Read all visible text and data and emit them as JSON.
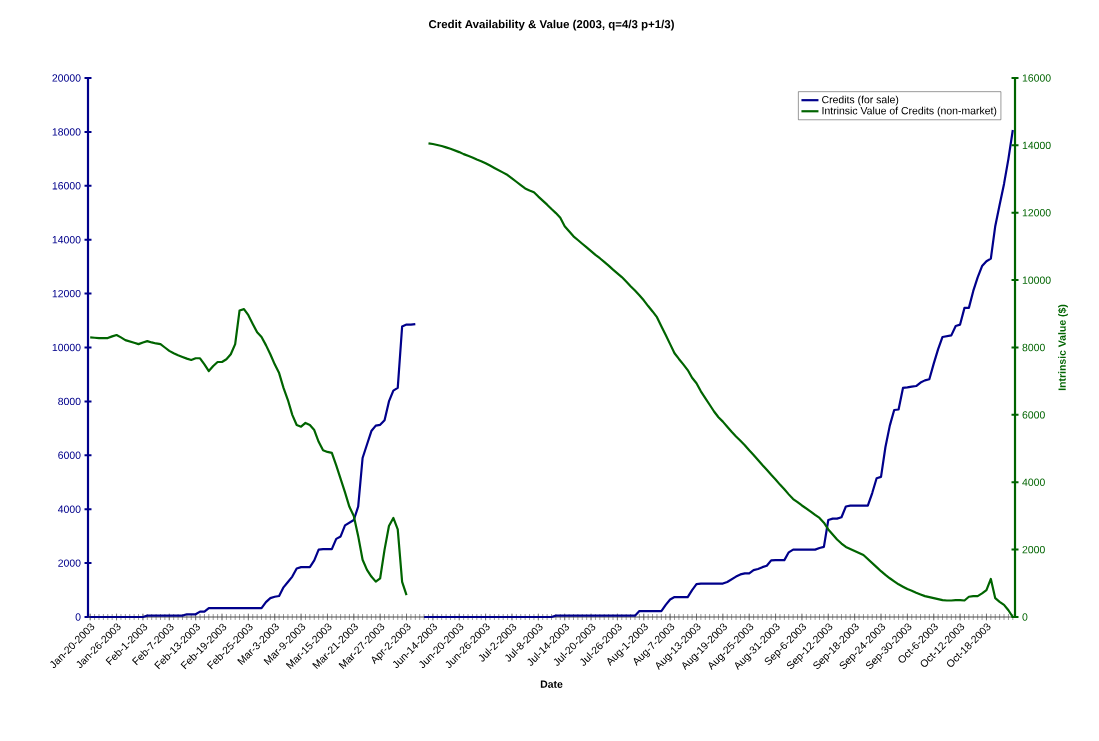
{
  "chart_data": {
    "type": "line",
    "title": "Credit Availability & Value (2003, q=4/3 p+1/3)",
    "xlabel": "Date",
    "y2label": "Intrinsic Value ($)",
    "categories": [
      "Jan-20-2003",
      null,
      null,
      null,
      null,
      null,
      "Jan-26-2003",
      null,
      null,
      null,
      null,
      null,
      "Feb-1-2003",
      null,
      null,
      null,
      null,
      null,
      "Feb-7-2003",
      null,
      null,
      null,
      null,
      null,
      "Feb-13-2003",
      null,
      null,
      null,
      null,
      null,
      "Feb-19-2003",
      null,
      null,
      null,
      null,
      null,
      "Feb-25-2003",
      null,
      null,
      null,
      null,
      null,
      "Mar-3-2003",
      null,
      null,
      null,
      null,
      null,
      "Mar-9-2003",
      null,
      null,
      null,
      null,
      null,
      "Mar-15-2003",
      null,
      null,
      null,
      null,
      null,
      "Mar-21-2003",
      null,
      null,
      null,
      null,
      null,
      "Mar-27-2003",
      null,
      null,
      null,
      null,
      null,
      "Apr-2-2003",
      null,
      null,
      null,
      null,
      null,
      "Jun-14-2003",
      null,
      null,
      null,
      null,
      null,
      "Jun-20-2003",
      null,
      null,
      null,
      null,
      null,
      "Jun-26-2003",
      null,
      null,
      null,
      null,
      null,
      "Jul-2-2003",
      null,
      null,
      null,
      null,
      null,
      "Jul-8-2003",
      null,
      null,
      null,
      null,
      null,
      "Jul-14-2003",
      null,
      null,
      null,
      null,
      null,
      "Jul-20-2003",
      null,
      null,
      null,
      null,
      null,
      "Jul-26-2003",
      null,
      null,
      null,
      null,
      null,
      "Aug-1-2003",
      null,
      null,
      null,
      null,
      null,
      "Aug-7-2003",
      null,
      null,
      null,
      null,
      null,
      "Aug-13-2003",
      null,
      null,
      null,
      null,
      null,
      "Aug-19-2003",
      null,
      null,
      null,
      null,
      null,
      "Aug-25-2003",
      null,
      null,
      null,
      null,
      null,
      "Aug-31-2003",
      null,
      null,
      null,
      null,
      null,
      "Sep-6-2003",
      null,
      null,
      null,
      null,
      null,
      "Sep-12-2003",
      null,
      null,
      null,
      null,
      null,
      "Sep-18-2003",
      null,
      null,
      null,
      null,
      null,
      "Sep-24-2003",
      null,
      null,
      null,
      null,
      null,
      "Sep-30-2003",
      null,
      null,
      null,
      null,
      null,
      "Oct-6-2003",
      null,
      null,
      null,
      null,
      null,
      "Oct-12-2003",
      null,
      null,
      null,
      null,
      null,
      "Oct-18-2003",
      null,
      null,
      null,
      null,
      null,
      null
    ],
    "series": [
      {
        "name": "Credits (for sale)",
        "color": "#00008b",
        "values": [
          0,
          0,
          0,
          0,
          0,
          0,
          0,
          0,
          0,
          0,
          0,
          0,
          0,
          50,
          50,
          50,
          50,
          50,
          50,
          50,
          50,
          50,
          100,
          100,
          100,
          200,
          200,
          330,
          330,
          330,
          330,
          330,
          330,
          330,
          330,
          330,
          330,
          330,
          330,
          330,
          550,
          700,
          750,
          780,
          1100,
          1300,
          1500,
          1800,
          1850,
          1850,
          1850,
          2100,
          2500,
          2520,
          2520,
          2520,
          2900,
          2990,
          3400,
          3500,
          3600,
          4100,
          5900,
          6400,
          6900,
          7100,
          7130,
          7300,
          8000,
          8400,
          8500,
          10780,
          10850,
          10850,
          10870,
          null,
          0,
          0,
          0,
          0,
          0,
          0,
          0,
          0,
          0,
          0,
          0,
          0,
          0,
          0,
          0,
          0,
          0,
          0,
          0,
          0,
          0,
          0,
          0,
          0,
          0,
          0,
          0,
          0,
          0,
          0,
          50,
          50,
          50,
          50,
          50,
          50,
          50,
          50,
          50,
          50,
          50,
          50,
          50,
          50,
          50,
          50,
          50,
          50,
          50,
          220,
          220,
          220,
          220,
          220,
          220,
          450,
          650,
          740,
          740,
          740,
          740,
          1000,
          1220,
          1240,
          1240,
          1240,
          1240,
          1240,
          1240,
          1300,
          1400,
          1500,
          1580,
          1620,
          1620,
          1740,
          1780,
          1850,
          1900,
          2100,
          2110,
          2110,
          2110,
          2400,
          2500,
          2500,
          2500,
          2500,
          2500,
          2500,
          2560,
          2600,
          3600,
          3650,
          3650,
          3700,
          4100,
          4130,
          4130,
          4130,
          4130,
          4130,
          4600,
          5150,
          5200,
          6300,
          7100,
          7680,
          7700,
          8500,
          8520,
          8550,
          8570,
          8700,
          8780,
          8820,
          9400,
          9940,
          10390,
          10420,
          10450,
          10800,
          10850,
          11470,
          11470,
          12100,
          12600,
          13020,
          13200,
          13300,
          14500,
          15300,
          16070,
          17000,
          18070
        ]
      },
      {
        "name": "Intrinsic Value of Credits (non-market)",
        "color": "#006400",
        "axis": "y2",
        "values": [
          8300,
          8290,
          8280,
          8280,
          8280,
          8330,
          8370,
          8300,
          8220,
          8180,
          8140,
          8100,
          8150,
          8190,
          8150,
          8120,
          8100,
          8000,
          7900,
          7830,
          7770,
          7720,
          7670,
          7630,
          7680,
          7680,
          7500,
          7300,
          7450,
          7570,
          7570,
          7650,
          7800,
          8100,
          9100,
          9140,
          8960,
          8700,
          8450,
          8310,
          8070,
          7800,
          7500,
          7240,
          6800,
          6440,
          6000,
          5700,
          5650,
          5760,
          5700,
          5550,
          5200,
          4950,
          4900,
          4870,
          4500,
          4100,
          3700,
          3270,
          3000,
          2400,
          1700,
          1400,
          1200,
          1050,
          1150,
          2000,
          2700,
          2940,
          2600,
          1040,
          650,
          null,
          null,
          null,
          null,
          14060,
          14040,
          14010,
          13980,
          13940,
          13900,
          13850,
          13800,
          13740,
          13690,
          13640,
          13580,
          13530,
          13470,
          13400,
          13330,
          13260,
          13190,
          13120,
          13020,
          12920,
          12820,
          12720,
          12660,
          12610,
          12480,
          12360,
          12240,
          12110,
          11990,
          11850,
          11600,
          11450,
          11300,
          11190,
          11080,
          10970,
          10860,
          10750,
          10650,
          10540,
          10430,
          10310,
          10200,
          10090,
          9960,
          9820,
          9690,
          9550,
          9400,
          9230,
          9070,
          8900,
          8630,
          8370,
          8100,
          7830,
          7660,
          7500,
          7330,
          7100,
          6940,
          6700,
          6500,
          6300,
          6100,
          5930,
          5800,
          5650,
          5500,
          5360,
          5230,
          5100,
          4950,
          4810,
          4660,
          4510,
          4370,
          4220,
          4080,
          3930,
          3790,
          3640,
          3500,
          3410,
          3310,
          3220,
          3130,
          3030,
          2940,
          2800,
          2600,
          2450,
          2300,
          2180,
          2080,
          2020,
          1960,
          1900,
          1840,
          1720,
          1600,
          1480,
          1360,
          1250,
          1150,
          1060,
          970,
          900,
          830,
          780,
          720,
          670,
          620,
          590,
          560,
          530,
          500,
          490,
          490,
          500,
          500,
          490,
          600,
          620,
          620,
          700,
          800,
          1130,
          560,
          450,
          360,
          200,
          0
        ]
      }
    ],
    "ylim": [
      0,
      20000
    ],
    "yticks": [
      0,
      2000,
      4000,
      6000,
      8000,
      10000,
      12000,
      14000,
      16000,
      18000,
      20000
    ],
    "y2lim": [
      0,
      16000
    ],
    "y2ticks": [
      0,
      2000,
      4000,
      6000,
      8000,
      10000,
      12000,
      14000,
      16000
    ],
    "legend": "top right",
    "marker": "none",
    "line_style": "solid"
  }
}
